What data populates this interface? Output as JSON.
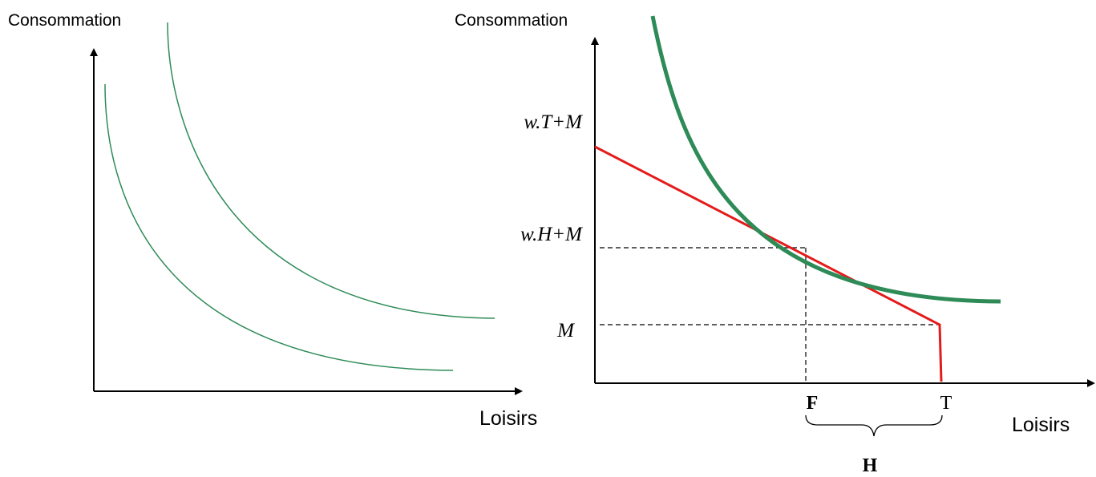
{
  "left_graph": {
    "y_axis_label": "Consommation",
    "x_axis_label": "Loisirs"
  },
  "right_graph": {
    "y_axis_label": "Consommation",
    "x_axis_label": "Loisirs",
    "y_labels": {
      "wT_plus_M": "w.T+M",
      "wH_plus_M": "w.H+M",
      "M": "M"
    },
    "x_labels": {
      "F": "F",
      "T": "T"
    },
    "brace_label": "H"
  },
  "colors": {
    "indifference_curve": "#2e8b57",
    "budget_line": "#e41b1b",
    "axis": "#000000"
  }
}
